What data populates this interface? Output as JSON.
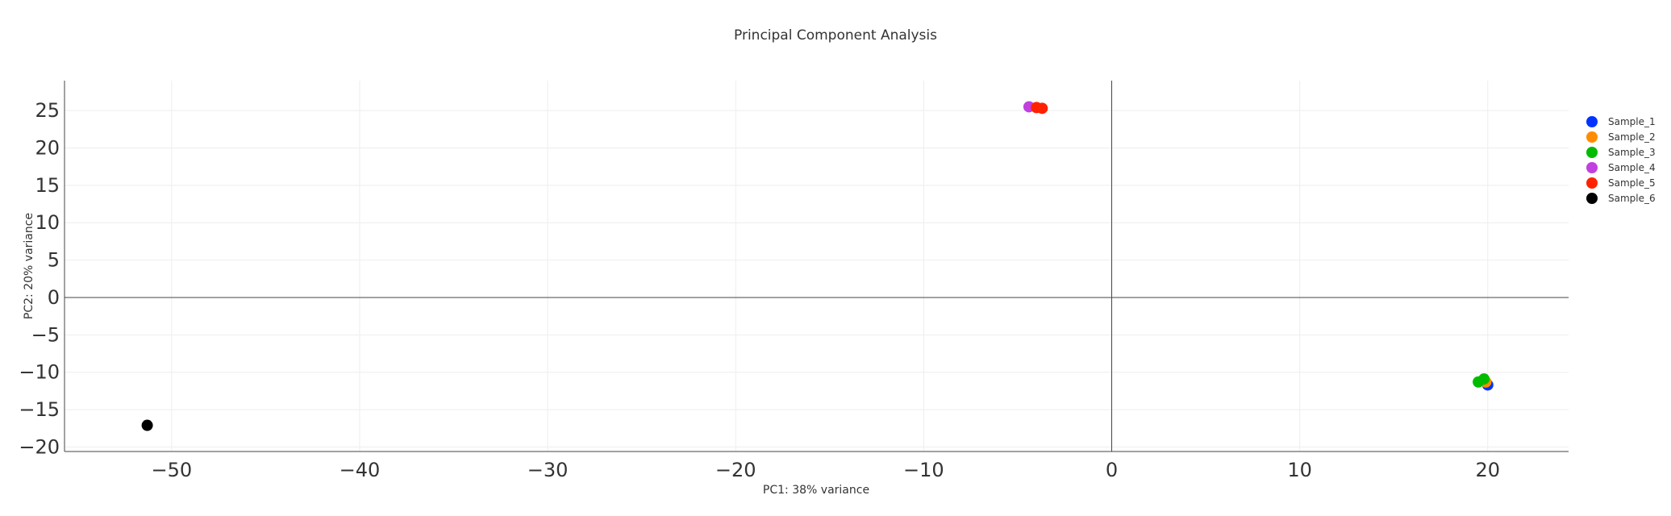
{
  "chart_data": {
    "type": "scatter",
    "title": "Principal Component Analysis",
    "xlabel": "PC1: 38% variance",
    "ylabel": "PC2: 20% variance",
    "xlim": [
      -55.7,
      24.3
    ],
    "ylim": [
      -20.6,
      29.0
    ],
    "xticks": [
      -50,
      -40,
      -30,
      -20,
      -10,
      0,
      10,
      20
    ],
    "yticks": [
      -20,
      -15,
      -10,
      -5,
      0,
      5,
      10,
      15,
      20,
      25
    ],
    "grid": true,
    "zero_lines": true,
    "legend_position": "right",
    "series": [
      {
        "name": "Sample_1",
        "color": "#0033ff",
        "points": [
          {
            "x": 20.0,
            "y": -11.7
          }
        ]
      },
      {
        "name": "Sample_2",
        "color": "#ff8c00",
        "points": [
          {
            "x": 19.9,
            "y": -11.3
          }
        ]
      },
      {
        "name": "Sample_3",
        "color": "#00bb00",
        "points": [
          {
            "x": 19.5,
            "y": -11.3
          },
          {
            "x": 19.8,
            "y": -10.9
          }
        ]
      },
      {
        "name": "Sample_4",
        "color": "#c040e0",
        "points": [
          {
            "x": -4.4,
            "y": 25.5
          }
        ]
      },
      {
        "name": "Sample_5",
        "color": "#ff2200",
        "points": [
          {
            "x": -4.0,
            "y": 25.4
          },
          {
            "x": -3.7,
            "y": 25.3
          }
        ]
      },
      {
        "name": "Sample_6",
        "color": "#000000",
        "points": [
          {
            "x": -51.3,
            "y": -17.1
          }
        ]
      }
    ]
  }
}
